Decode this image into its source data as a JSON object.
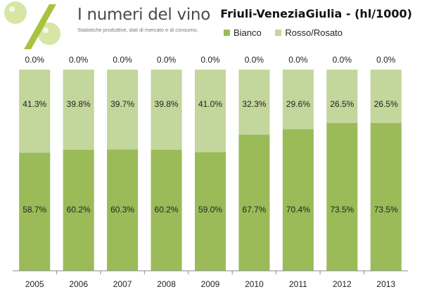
{
  "brand": {
    "title": "I numeri del vino",
    "tagline": "Statistiche produttive, dati di mercato e di consumo,"
  },
  "colors": {
    "bianco": "#9bbb59",
    "rosso_rosato": "#c3d69b",
    "background_band": "#e8e8e8",
    "axis": "#888888",
    "logo_accent": "#a9c23f"
  },
  "chart_data": {
    "type": "bar",
    "stacked": true,
    "normalized_percent": true,
    "title": "Friuli-VeneziaGiulia - (hl/1000)",
    "legend_position": "top",
    "grid": false,
    "ylim": [
      0,
      100
    ],
    "categories": [
      "2005",
      "2006",
      "2007",
      "2008",
      "2009",
      "2010",
      "2011",
      "2012",
      "2013"
    ],
    "series": [
      {
        "name": "Bianco",
        "values": [
          58.7,
          60.2,
          60.3,
          60.2,
          59.0,
          67.7,
          70.4,
          73.5,
          73.5
        ],
        "labels": [
          "58.7%",
          "60.2%",
          "60.3%",
          "60.2%",
          "59.0%",
          "67.7%",
          "70.4%",
          "73.5%",
          "73.5%"
        ]
      },
      {
        "name": "Rosso/Rosato",
        "values": [
          41.3,
          39.8,
          39.7,
          39.8,
          41.0,
          32.3,
          29.6,
          26.5,
          26.5
        ],
        "labels": [
          "41.3%",
          "39.8%",
          "39.7%",
          "39.8%",
          "41.0%",
          "32.3%",
          "29.6%",
          "26.5%",
          "26.5%"
        ]
      },
      {
        "name": "",
        "values": [
          0,
          0,
          0,
          0,
          0,
          0,
          0,
          0,
          0
        ],
        "labels": [
          "0.0%",
          "0.0%",
          "0.0%",
          "0.0%",
          "0.0%",
          "0.0%",
          "0.0%",
          "0.0%",
          "0.0%"
        ]
      }
    ]
  }
}
